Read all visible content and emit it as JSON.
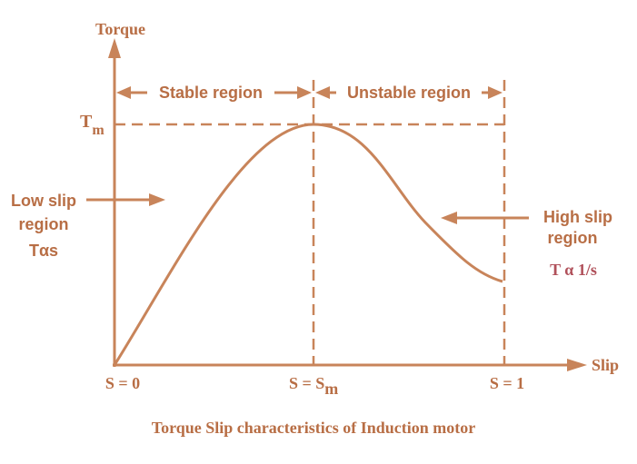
{
  "diagram": {
    "y_axis_label": "Torque",
    "x_axis_label": "Slip",
    "max_torque": {
      "base": "T",
      "sub": "m"
    },
    "stable_region": "Stable region",
    "unstable_region": "Unstable region",
    "low_slip": {
      "lines": [
        "Low slip",
        "region"
      ],
      "relation": "Tαs"
    },
    "high_slip": {
      "lines": [
        "High slip",
        "region"
      ],
      "relation": "T α 1/s"
    },
    "slip_points": {
      "zero": "S = 0",
      "max": {
        "base": "S = S",
        "sub": "m"
      },
      "one": "S = 1"
    },
    "caption": "Torque Slip characteristics of Induction motor"
  }
}
